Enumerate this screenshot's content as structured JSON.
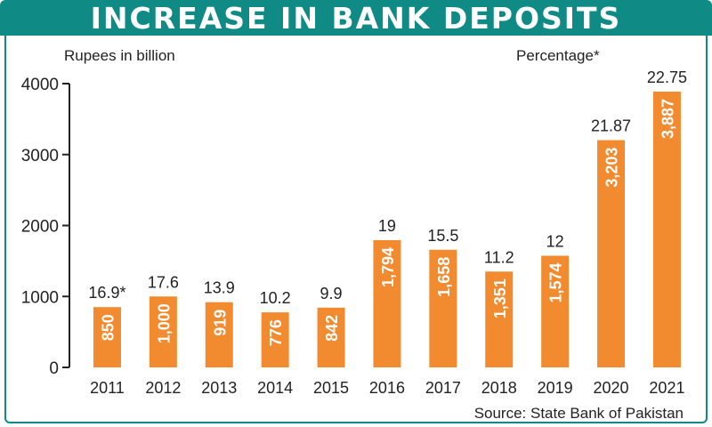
{
  "chart_data": {
    "type": "bar",
    "title": "INCREASE IN BANK DEPOSITS",
    "ylabel": "Rupees in billion",
    "secondary_label": "Percentage*",
    "source": "Source: State Bank of Pakistan",
    "ylim": [
      0,
      4000
    ],
    "yticks": [
      0,
      1000,
      2000,
      3000,
      4000
    ],
    "categories": [
      "2011",
      "2012",
      "2013",
      "2014",
      "2015",
      "2016",
      "2017",
      "2018",
      "2019",
      "2020",
      "2021"
    ],
    "values": [
      850,
      1000,
      919,
      776,
      842,
      1794,
      1658,
      1351,
      1574,
      3203,
      3887
    ],
    "value_labels": [
      "850",
      "1,000",
      "919",
      "776",
      "842",
      "1,794",
      "1,658",
      "1,351",
      "1,574",
      "3,203",
      "3,887"
    ],
    "percent_labels": [
      "16.9*",
      "17.6",
      "13.9",
      "10.2",
      "9.9",
      "19",
      "15.5",
      "11.2",
      "12",
      "21.87",
      "22.75"
    ],
    "bar_color": "#f28a30",
    "accent_color": "#0f8a84",
    "grid": false
  }
}
